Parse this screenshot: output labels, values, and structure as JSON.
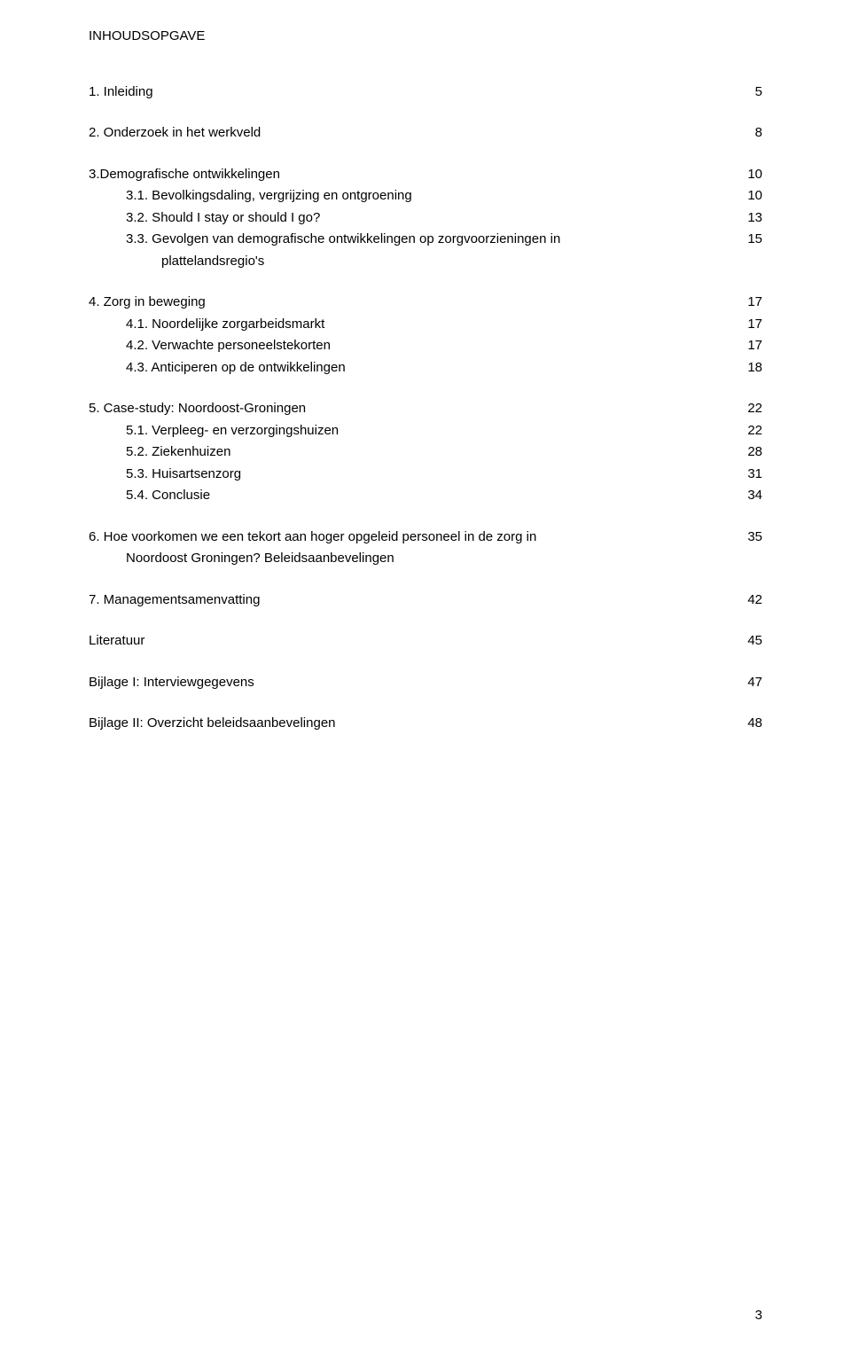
{
  "title": "INHOUDSOPGAVE",
  "toc": [
    {
      "label": "1. Inleiding",
      "page": "5",
      "indent": 0,
      "gapBefore": false
    },
    {
      "label": "2. Onderzoek in het werkveld",
      "page": "8",
      "indent": 0,
      "gapBefore": true
    },
    {
      "label": "3.Demografische ontwikkelingen",
      "page": "10",
      "indent": 0,
      "gapBefore": true
    },
    {
      "label": "3.1. Bevolkingsdaling, vergrijzing en ontgroening",
      "page": "10",
      "indent": 1
    },
    {
      "label": "3.2. Should I stay or should I go?",
      "page": "13",
      "indent": 1
    },
    {
      "label": "3.3. Gevolgen van demografische ontwikkelingen op zorgvoorzieningen in",
      "page": "15",
      "indent": 1
    },
    {
      "label": "plattelandsregio's",
      "page": "",
      "indent": 1,
      "continuation": true
    },
    {
      "label": "4. Zorg in beweging",
      "page": "17",
      "indent": 0,
      "gapBefore": true
    },
    {
      "label": "4.1. Noordelijke zorgarbeidsmarkt",
      "page": "17",
      "indent": 1
    },
    {
      "label": "4.2. Verwachte personeelstekorten",
      "page": "17",
      "indent": 1
    },
    {
      "label": "4.3. Anticiperen op de ontwikkelingen",
      "page": "18",
      "indent": 1
    },
    {
      "label": "5. Case-study: Noordoost-Groningen",
      "page": "22",
      "indent": 0,
      "gapBefore": true
    },
    {
      "label": "5.1. Verpleeg- en verzorgingshuizen",
      "page": "22",
      "indent": 1
    },
    {
      "label": "5.2. Ziekenhuizen",
      "page": "28",
      "indent": 1
    },
    {
      "label": "5.3. Huisartsenzorg",
      "page": "31",
      "indent": 1
    },
    {
      "label": "5.4. Conclusie",
      "page": "34",
      "indent": 1
    },
    {
      "label": "6. Hoe voorkomen we een tekort aan hoger opgeleid personeel in de zorg in",
      "page": "35",
      "indent": 0,
      "gapBefore": true
    },
    {
      "label": "Noordoost Groningen? Beleidsaanbevelingen",
      "page": "",
      "indent": 0,
      "continuation": true
    },
    {
      "label": "7. Managementsamenvatting",
      "page": "42",
      "indent": 0,
      "gapBefore": true
    },
    {
      "label": "Literatuur",
      "page": "45",
      "indent": 0,
      "gapBefore": true
    },
    {
      "label": "Bijlage I: Interviewgegevens",
      "page": "47",
      "indent": 0,
      "gapBefore": true
    },
    {
      "label": "Bijlage II: Overzicht beleidsaanbevelingen",
      "page": "48",
      "indent": 0,
      "gapBefore": true
    }
  ],
  "pageNumber": "3",
  "style": {
    "textColor": "#000000",
    "backgroundColor": "#ffffff",
    "fontSize": 15,
    "fontFamily": "Verdana"
  }
}
